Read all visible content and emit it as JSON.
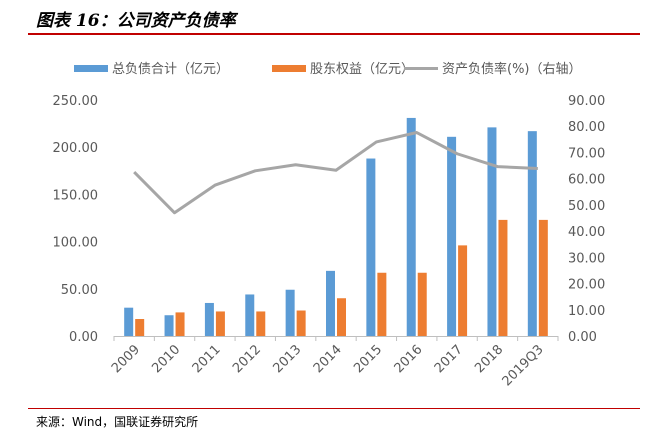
{
  "header": {
    "title": "图表 16：公司资产负债率"
  },
  "footer": {
    "source": "来源：Wind，国联证券研究所"
  },
  "colors": {
    "total_debt": "#5b9bd5",
    "equity": "#ed7d31",
    "ratio": "#a6a6a6",
    "rule": "#c00000"
  },
  "chart_data": {
    "type": "bar",
    "title": "图表 16：公司资产负债率",
    "categories": [
      "2009",
      "2010",
      "2011",
      "2012",
      "2013",
      "2014",
      "2015",
      "2016",
      "2017",
      "2018",
      "2019Q3"
    ],
    "series": [
      {
        "name": "总负债合计（亿元）",
        "type": "bar",
        "axis": "left",
        "values": [
          30,
          22,
          35,
          44,
          49,
          69,
          188,
          231,
          211,
          221,
          217
        ]
      },
      {
        "name": "股东权益（亿元）",
        "type": "bar",
        "axis": "left",
        "values": [
          18,
          25,
          26,
          26,
          27,
          40,
          67,
          67,
          96,
          123,
          123
        ]
      },
      {
        "name": "资产负债率(%)（右轴）",
        "type": "line",
        "axis": "right",
        "values": [
          62.5,
          47,
          57.5,
          63,
          65.3,
          63.2,
          74,
          77.6,
          69.5,
          64.6,
          63.9
        ]
      }
    ],
    "y_left": {
      "ylim": [
        0,
        250
      ],
      "ticks": [
        "0.00",
        "50.00",
        "100.00",
        "150.00",
        "200.00",
        "250.00"
      ]
    },
    "y_right": {
      "ylim": [
        0,
        90
      ],
      "ticks": [
        "0.00",
        "10.00",
        "20.00",
        "30.00",
        "40.00",
        "50.00",
        "60.00",
        "70.00",
        "80.00",
        "90.00"
      ]
    },
    "legend_position": "top",
    "grid": false
  }
}
